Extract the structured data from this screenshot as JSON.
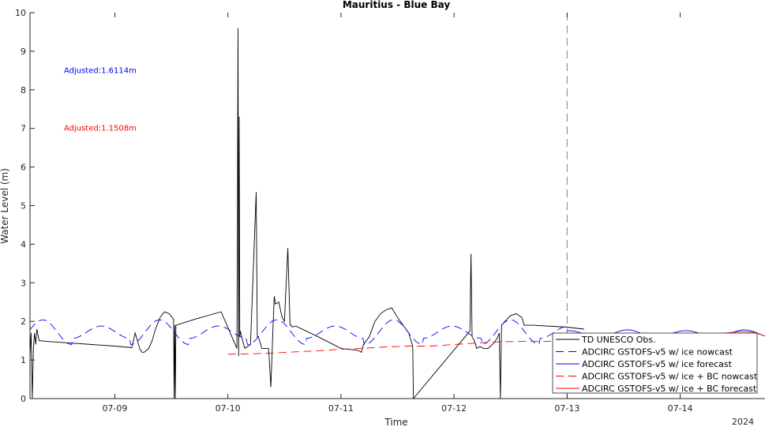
{
  "colors": {
    "observed": "#000000",
    "nowcast": "#0000ff",
    "forecast": "#0000ff",
    "bc_nowcast": "#ff0000",
    "bc_forecast": "#ff0000",
    "axis": "#262626",
    "forecast_divider": "#808080"
  },
  "chart_data": {
    "type": "line",
    "title": "Mauritius - Blue Bay",
    "xlabel": "Time",
    "ylabel": "Water Level (m)",
    "year_label": "2024",
    "xlim": [
      8.25,
      14.75
    ],
    "ylim": [
      0,
      10
    ],
    "x_unit": "day of July 2024",
    "x_ticks": [
      9,
      10,
      11,
      12,
      13,
      14
    ],
    "x_tick_labels": [
      "07-09",
      "07-10",
      "07-11",
      "07-12",
      "07-13",
      "07-14"
    ],
    "y_ticks": [
      0,
      1,
      2,
      3,
      4,
      5,
      6,
      7,
      8,
      9,
      10
    ],
    "y_tick_labels": [
      "0",
      "1",
      "2",
      "3",
      "4",
      "5",
      "6",
      "7",
      "8",
      "9",
      "10"
    ],
    "grid": false,
    "legend_position": "bottom-right",
    "forecast_start_x": 13.0,
    "annotations": [
      {
        "text": "Adjusted:1.6114m",
        "color": "#0000ff",
        "x": 8.55,
        "y": 8.5
      },
      {
        "text": "Adjusted:1.1508m",
        "color": "#ff0000",
        "x": 8.55,
        "y": 7.0
      }
    ],
    "series": [
      {
        "name": "TD UNESCO Obs.",
        "style": "solid",
        "color": "#000000",
        "x": [
          8.25,
          8.26,
          8.27,
          8.28,
          8.29,
          8.3,
          8.31,
          8.33,
          8.4,
          8.6,
          8.8,
          9.0,
          9.15,
          9.18,
          9.2,
          9.22,
          9.24,
          9.26,
          9.28,
          9.3,
          9.33,
          9.36,
          9.4,
          9.44,
          9.48,
          9.52,
          9.525,
          9.53,
          9.535,
          9.54,
          9.7,
          9.94,
          10.08,
          10.09,
          10.095,
          10.1,
          10.105,
          10.11,
          10.13,
          10.15,
          10.2,
          10.25,
          10.26,
          10.27,
          10.3,
          10.36,
          10.38,
          10.4,
          10.41,
          10.42,
          10.45,
          10.48,
          10.5,
          10.53,
          10.55,
          10.56,
          10.57,
          10.6,
          10.8,
          11.0,
          11.15,
          11.18,
          11.2,
          11.25,
          11.3,
          11.35,
          11.4,
          11.45,
          11.5,
          11.55,
          11.6,
          11.635,
          11.64,
          12.14,
          12.15,
          12.16,
          12.18,
          12.2,
          12.23,
          12.26,
          12.3,
          12.34,
          12.38,
          12.4,
          12.41,
          12.42,
          12.45,
          12.5,
          12.55,
          12.6,
          12.62,
          12.7,
          13.0,
          13.15
        ],
        "y": [
          1.1,
          1.7,
          0.0,
          1.3,
          1.7,
          1.4,
          1.8,
          1.5,
          1.48,
          1.44,
          1.4,
          1.36,
          1.32,
          1.7,
          1.5,
          1.3,
          1.2,
          1.2,
          1.25,
          1.3,
          1.5,
          1.8,
          2.1,
          2.25,
          2.2,
          2.05,
          0.0,
          1.9,
          0.0,
          1.9,
          2.05,
          2.25,
          1.3,
          9.6,
          1.1,
          7.3,
          1.6,
          1.75,
          1.5,
          1.3,
          1.4,
          5.35,
          1.6,
          1.6,
          1.3,
          1.3,
          0.3,
          1.9,
          2.65,
          2.45,
          2.5,
          2.1,
          2.0,
          3.9,
          1.9,
          1.9,
          1.85,
          1.88,
          1.6,
          1.3,
          1.25,
          1.2,
          1.4,
          1.6,
          2.0,
          2.2,
          2.3,
          2.35,
          2.1,
          1.9,
          1.7,
          1.35,
          0.0,
          1.75,
          3.75,
          1.6,
          1.5,
          1.3,
          1.35,
          1.3,
          1.3,
          1.4,
          1.55,
          1.7,
          0.0,
          1.9,
          2.0,
          2.15,
          2.2,
          2.1,
          1.9,
          1.9,
          1.85,
          1.8
        ]
      },
      {
        "name": "ADCIRC GSTOFS-v5 w/ ice nowcast",
        "style": "dashed",
        "color": "#0000ff",
        "x_start": 8.25,
        "x_end": 13.0,
        "mean": 1.72,
        "amplitude": [
          0.16,
          0.32
        ],
        "period_days": 0.517,
        "phase_peak_x": 8.88
      },
      {
        "name": "ADCIRC GSTOFS-v5 w/ ice forecast",
        "style": "solid",
        "color": "#0000ff",
        "x_start": 13.0,
        "x_end": 14.75,
        "mean": 1.68,
        "amplitude": [
          0.08,
          0.1
        ],
        "period_days": 0.517,
        "phase_peak_x": 8.88
      },
      {
        "name": "ADCIRC GSTOFS-v5 w/ ice + BC nowcast",
        "style": "dashed",
        "color": "#ff0000",
        "x": [
          10.0,
          10.2,
          10.4,
          10.6,
          10.8,
          11.0,
          11.2,
          11.4,
          11.6,
          11.8,
          12.0,
          12.2,
          12.4,
          12.6,
          12.8,
          13.0
        ],
        "y": [
          1.15,
          1.16,
          1.18,
          1.21,
          1.24,
          1.28,
          1.3,
          1.34,
          1.36,
          1.36,
          1.4,
          1.44,
          1.47,
          1.48,
          1.48,
          1.5
        ]
      },
      {
        "name": "ADCIRC GSTOFS-v5 w/ ice + BC forecast",
        "style": "solid",
        "color": "#ff0000",
        "x": [
          13.0,
          13.2,
          13.4,
          13.6,
          13.8,
          14.0,
          14.2,
          14.4,
          14.55,
          14.65,
          14.75
        ],
        "y": [
          1.5,
          1.55,
          1.58,
          1.6,
          1.62,
          1.64,
          1.66,
          1.7,
          1.74,
          1.72,
          1.62
        ]
      }
    ]
  }
}
